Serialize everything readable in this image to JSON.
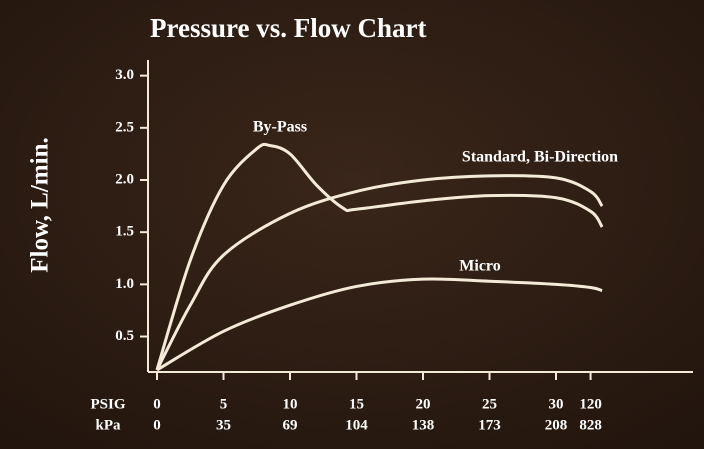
{
  "chart_data": {
    "type": "line",
    "title": "Pressure vs. Flow Chart",
    "ylabel": "Flow, L/min.",
    "xlabel": "PSIG",
    "xlabel_secondary": "kPa",
    "xlim": [
      0,
      150
    ],
    "xticks": [
      0,
      5,
      10,
      15,
      20,
      25,
      30,
      120
    ],
    "xticks_secondary": [
      0,
      35,
      69,
      104,
      138,
      173,
      208,
      828
    ],
    "ylim": [
      0.16,
      3.15
    ],
    "yticks": [
      0.5,
      1.0,
      1.5,
      2.0,
      2.5,
      3.0
    ],
    "ytick_labels": [
      "0.5",
      "1.0",
      "1.5",
      "2.0",
      "2.5",
      "3.0"
    ],
    "annotations": [
      "By-Pass",
      "Standard, Bi-Direction",
      "Micro"
    ],
    "series": [
      {
        "name": "Standard, Bi-Direction",
        "color": "#f4ead8",
        "x": [
          0,
          2.5,
          5,
          10,
          15,
          20,
          25,
          30,
          120,
          150
        ],
        "values": [
          0.18,
          0.8,
          1.28,
          1.68,
          1.89,
          2.0,
          2.04,
          2.02,
          1.89,
          1.75
        ]
      },
      {
        "name": "By-Pass",
        "color": "#f4ead8",
        "x": [
          0,
          2.5,
          5,
          7.5,
          8.5,
          10,
          12,
          14,
          15,
          20,
          25,
          30,
          120,
          150
        ],
        "values": [
          0.18,
          1.23,
          1.95,
          2.3,
          2.33,
          2.25,
          1.95,
          1.73,
          1.72,
          1.8,
          1.85,
          1.83,
          1.7,
          1.55
        ]
      },
      {
        "name": "Micro",
        "color": "#f4ead8",
        "x": [
          0,
          5,
          10,
          15,
          20,
          25,
          30,
          120,
          150
        ],
        "values": [
          0.18,
          0.55,
          0.8,
          0.98,
          1.05,
          1.03,
          1.0,
          0.97,
          0.94
        ]
      }
    ]
  }
}
